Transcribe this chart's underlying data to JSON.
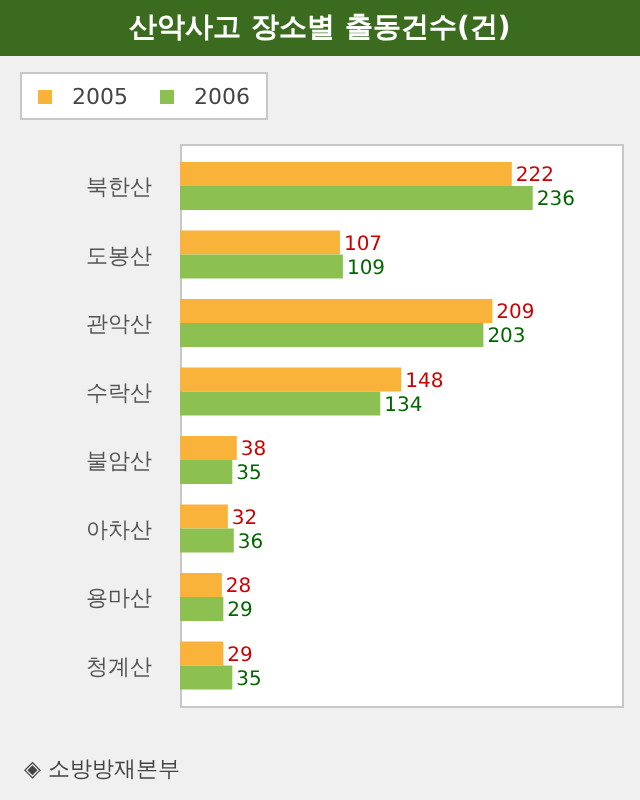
{
  "chart_data": {
    "type": "bar",
    "orientation": "horizontal",
    "title": "산악사고 장소별 출동건수(건)",
    "categories": [
      "북한산",
      "도봉산",
      "관악산",
      "수락산",
      "불암산",
      "아차산",
      "용마산",
      "청계산"
    ],
    "series": [
      {
        "name": "2005",
        "color": "#f9b23a",
        "values": [
          222,
          107,
          209,
          148,
          38,
          32,
          28,
          29
        ]
      },
      {
        "name": "2006",
        "color": "#8cc152",
        "values": [
          236,
          109,
          203,
          134,
          35,
          36,
          29,
          35
        ]
      }
    ],
    "data_labels": true,
    "legend": "top left",
    "annotations": [
      "◈ 소방방재본부"
    ]
  }
}
